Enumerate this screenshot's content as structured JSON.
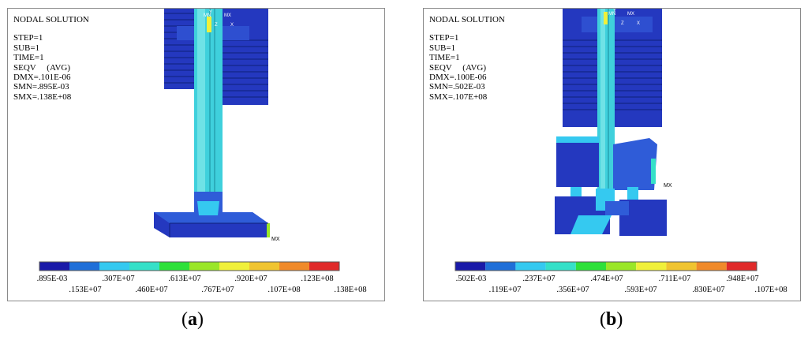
{
  "panels": [
    {
      "title": "NODAL SOLUTION",
      "info": [
        "STEP=1",
        "SUB=1",
        "TIME=1",
        "SEQV     (AVG)",
        "DMX=.101E-06",
        "SMN=.895E-03",
        "SMX=.138E+08"
      ],
      "mx_label": "MX",
      "axis_labels": [
        "MN",
        "Y",
        "MX",
        "Z",
        "X"
      ],
      "legend_top": [
        ".895E-03",
        ".307E+07",
        ".613E+07",
        ".920E+07",
        ".123E+08"
      ],
      "legend_bottom": [
        ".153E+07",
        ".460E+07",
        ".767E+07",
        ".107E+08",
        ".138E+08"
      ],
      "caption_open": "(",
      "caption_letter": "a",
      "caption_close": ")"
    },
    {
      "title": "NODAL SOLUTION",
      "info": [
        "STEP=1",
        "SUB=1",
        "TIME=1",
        "SEQV     (AVG)",
        "DMX=.100E-06",
        "SMN=.502E-03",
        "SMX=.107E+08"
      ],
      "mx_label": "MX",
      "axis_labels": [
        "MN",
        "Y",
        "MX",
        "Z",
        "X"
      ],
      "legend_top": [
        ".502E-03",
        ".237E+07",
        ".474E+07",
        ".711E+07",
        ".948E+07"
      ],
      "legend_bottom": [
        ".119E+07",
        ".356E+07",
        ".593E+07",
        ".830E+07",
        ".107E+08"
      ],
      "caption_open": "(",
      "caption_letter": "b",
      "caption_close": ")"
    }
  ],
  "colors": {
    "legend": [
      "#1a1aa8",
      "#1f6fd8",
      "#35c9f0",
      "#35e0c8",
      "#2ee03a",
      "#9ae628",
      "#f0f03a",
      "#f0c430",
      "#f08a2a",
      "#e02a2a"
    ],
    "model_dark": "#1f36b8",
    "model_mid": "#2f5cd8",
    "model_cyan": "#3fd0dc",
    "model_light": "#6fe2e6"
  }
}
